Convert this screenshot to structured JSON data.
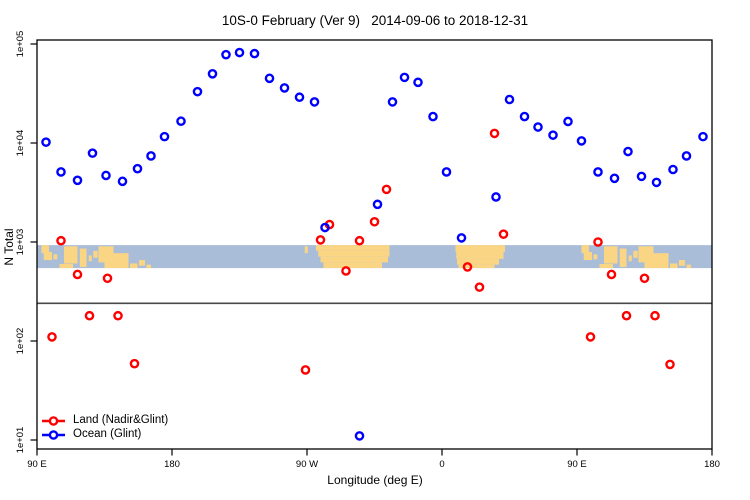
{
  "title": "10S-0 February (Ver 9)   2014-09-06 to 2018-12-31",
  "legend": {
    "items": [
      {
        "label": "Land (Nadir&Glint)",
        "color": "#FF0000"
      },
      {
        "label": "Ocean (Glint)",
        "color": "#0000FF"
      }
    ]
  },
  "chart_data": {
    "type": "scatter",
    "title": "10S-0 February (Ver 9)   2014-09-06 to 2018-12-31",
    "xlabel": "Longitude (deg E)",
    "ylabel": "N Total",
    "x_axis": {
      "min": 90,
      "max": 540,
      "ticks": [
        {
          "pos": 90,
          "label": "90 E"
        },
        {
          "pos": 180,
          "label": "180"
        },
        {
          "pos": 270,
          "label": "90 W"
        },
        {
          "pos": 360,
          "label": "0"
        },
        {
          "pos": 450,
          "label": "90 E"
        },
        {
          "pos": 540,
          "label": "180"
        }
      ]
    },
    "y_axis": {
      "scale": "log10",
      "min": 10,
      "max": 100000,
      "ticks": [
        {
          "value": 100000,
          "label": "1e+05"
        },
        {
          "value": 10000,
          "label": "1e+04"
        },
        {
          "value": 1000,
          "label": "1e+03"
        },
        {
          "value": 100,
          "label": "1e+02"
        },
        {
          "value": 10,
          "label": "1e+01"
        }
      ]
    },
    "reference_line_value": 240,
    "map_band": {
      "top_value": 930,
      "bottom_value": 545,
      "ocean_color": "#A9BDD8",
      "land_color": "#FAD584",
      "land_rects": [
        [
          93,
          98,
          0.0,
          0.35
        ],
        [
          94.5,
          100,
          0.3,
          0.65
        ],
        [
          101,
          103.5,
          0.4,
          0.62
        ],
        [
          105,
          114,
          0.82,
          1.0
        ],
        [
          108,
          117,
          0.05,
          0.8
        ],
        [
          118.5,
          123,
          0.15,
          0.95
        ],
        [
          124.5,
          126.5,
          0.45,
          0.7
        ],
        [
          127.5,
          130.5,
          0.25,
          0.55
        ],
        [
          131,
          141,
          0.05,
          0.75
        ],
        [
          135,
          151,
          0.35,
          1.0
        ],
        [
          152,
          157,
          0.8,
          1.0
        ],
        [
          158,
          162,
          0.65,
          0.9
        ],
        [
          163,
          166,
          0.85,
          1.0
        ],
        [
          268.5,
          270.5,
          0.05,
          0.35
        ],
        [
          276,
          325,
          0.0,
          0.25
        ],
        [
          277.5,
          325,
          0.25,
          0.5
        ],
        [
          279,
          324,
          0.5,
          0.75
        ],
        [
          281,
          320,
          0.75,
          1.0
        ],
        [
          369,
          402,
          0.0,
          0.3
        ],
        [
          369.5,
          401,
          0.3,
          0.6
        ],
        [
          370,
          398,
          0.6,
          0.85
        ],
        [
          371,
          395,
          0.85,
          1.0
        ],
        [
          453,
          458,
          0.0,
          0.35
        ],
        [
          454.5,
          460,
          0.3,
          0.65
        ],
        [
          461,
          463.5,
          0.4,
          0.62
        ],
        [
          465,
          474,
          0.82,
          1.0
        ],
        [
          468,
          477,
          0.05,
          0.8
        ],
        [
          478.5,
          483,
          0.15,
          0.95
        ],
        [
          484.5,
          486.5,
          0.45,
          0.7
        ],
        [
          487.5,
          490.5,
          0.25,
          0.55
        ],
        [
          491,
          501,
          0.05,
          0.75
        ],
        [
          495,
          511,
          0.35,
          1.0
        ],
        [
          512,
          517,
          0.8,
          1.0
        ],
        [
          518,
          522,
          0.65,
          0.9
        ],
        [
          523,
          526,
          0.85,
          1.0
        ]
      ]
    },
    "series": [
      {
        "name": "Land (Nadir&Glint)",
        "color": "#FF0000",
        "points": [
          [
            100,
            110
          ],
          [
            106,
            1030
          ],
          [
            117,
            470
          ],
          [
            125,
            180
          ],
          [
            137,
            430
          ],
          [
            144,
            180
          ],
          [
            155,
            59
          ],
          [
            269,
            51
          ],
          [
            279,
            1050
          ],
          [
            285,
            1500
          ],
          [
            296,
            510
          ],
          [
            305,
            1030
          ],
          [
            315,
            1600
          ],
          [
            323,
            3400
          ],
          [
            377,
            560
          ],
          [
            385,
            350
          ],
          [
            395,
            12500
          ],
          [
            401,
            1200
          ],
          [
            459,
            110
          ],
          [
            464,
            1000
          ],
          [
            473,
            470
          ],
          [
            483,
            180
          ],
          [
            495,
            430
          ],
          [
            502,
            180
          ],
          [
            512,
            58
          ]
        ]
      },
      {
        "name": "Ocean (Glint)",
        "color": "#0000FF",
        "points": [
          [
            96,
            10200
          ],
          [
            106,
            5100
          ],
          [
            117,
            4200
          ],
          [
            127,
            7900
          ],
          [
            136,
            4700
          ],
          [
            147,
            4100
          ],
          [
            157,
            5500
          ],
          [
            166,
            7400
          ],
          [
            175,
            11600
          ],
          [
            186,
            16600
          ],
          [
            197,
            33000
          ],
          [
            207,
            50000
          ],
          [
            216,
            78000
          ],
          [
            225,
            82000
          ],
          [
            235,
            80000
          ],
          [
            245,
            45000
          ],
          [
            255,
            36000
          ],
          [
            265,
            29000
          ],
          [
            275,
            26000
          ],
          [
            282,
            1400
          ],
          [
            317,
            2400
          ],
          [
            327,
            26000
          ],
          [
            335,
            46000
          ],
          [
            344,
            41000
          ],
          [
            354,
            18500
          ],
          [
            363,
            5100
          ],
          [
            373,
            1100
          ],
          [
            396,
            2850
          ],
          [
            405,
            27500
          ],
          [
            415,
            18500
          ],
          [
            424,
            14500
          ],
          [
            434,
            12000
          ],
          [
            444,
            16500
          ],
          [
            453,
            10500
          ],
          [
            464,
            5100
          ],
          [
            475,
            4400
          ],
          [
            484,
            8200
          ],
          [
            493,
            4600
          ],
          [
            503,
            4000
          ],
          [
            514,
            5400
          ],
          [
            523,
            7400
          ],
          [
            534,
            11600
          ],
          [
            305,
            11
          ]
        ]
      }
    ]
  }
}
